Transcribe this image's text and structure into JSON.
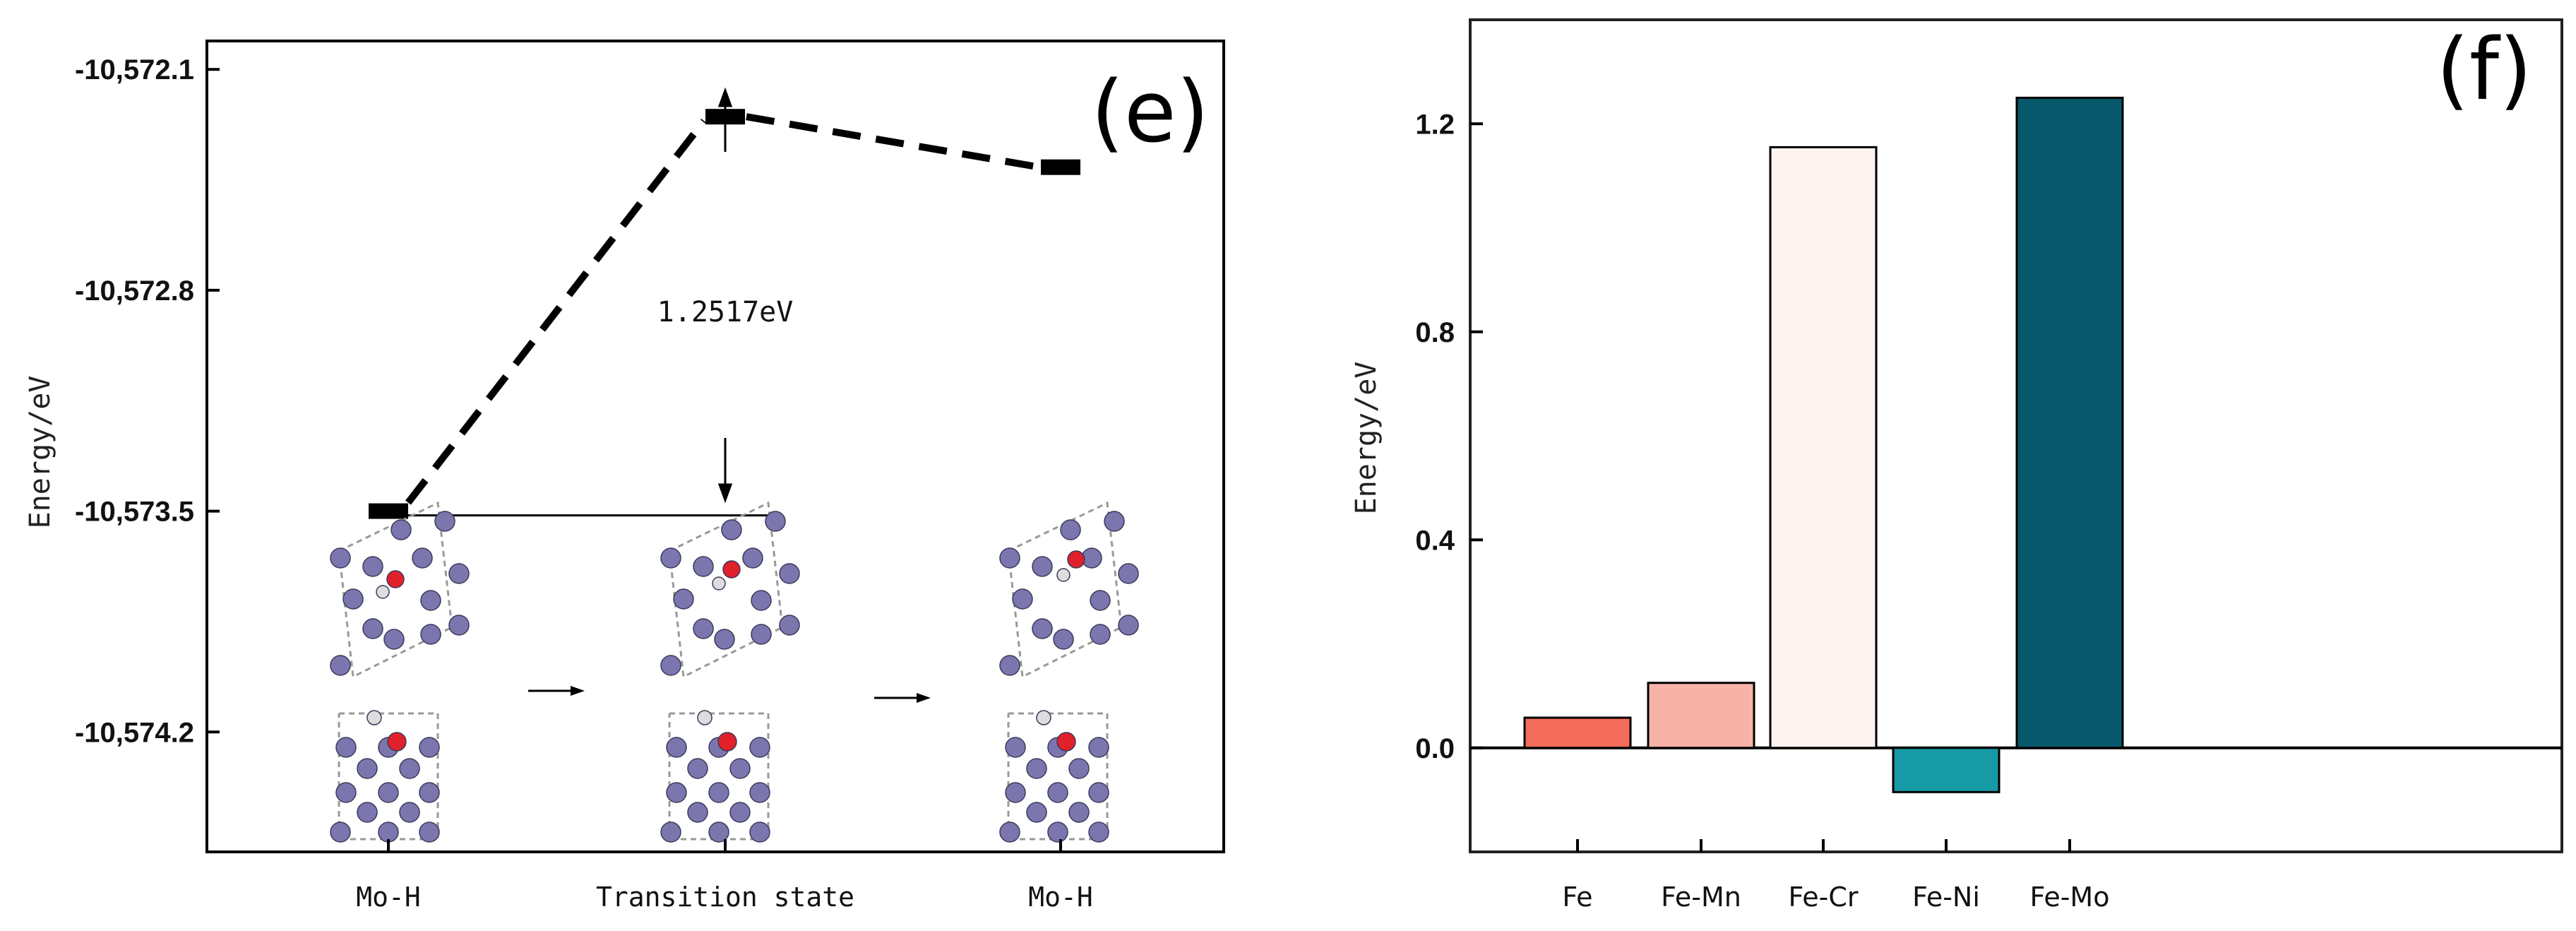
{
  "chart_data": [
    {
      "type": "energy-profile",
      "panel_label": "(e)",
      "ylabel": "Energy/eV",
      "ylim": [
        -10574.58,
        -10572.01
      ],
      "yticks": [
        {
          "value": -10572.1,
          "label": "-10,572.1"
        },
        {
          "value": -10572.8,
          "label": "-10,572.8"
        },
        {
          "value": -10573.5,
          "label": "-10,573.5"
        },
        {
          "value": -10574.2,
          "label": "-10,574.2"
        }
      ],
      "categories": [
        "Mo-H",
        "Transition state",
        "Mo-H"
      ],
      "levels": [
        -10573.5,
        -10572.25,
        -10572.41
      ],
      "barrier_label": "1.2517eV",
      "barrier_value": 1.2517
    },
    {
      "type": "bar",
      "panel_label": "(f)",
      "ylabel": "Energy/eV",
      "ylim": [
        -0.2,
        1.4
      ],
      "yticks": [
        {
          "value": 0.0,
          "label": "0.0"
        },
        {
          "value": 0.4,
          "label": "0.4"
        },
        {
          "value": 0.8,
          "label": "0.8"
        },
        {
          "value": 1.2,
          "label": "1.2"
        }
      ],
      "categories": [
        "Fe",
        "Fe-Mn",
        "Fe-Cr",
        "Fe-Ni",
        "Fe-Mo"
      ],
      "values": [
        0.058,
        0.125,
        1.155,
        -0.085,
        1.25
      ],
      "colors": [
        "#f26b5b",
        "#f7b3a8",
        "#fdf4f1",
        "#169aa6",
        "#06586a"
      ]
    }
  ]
}
